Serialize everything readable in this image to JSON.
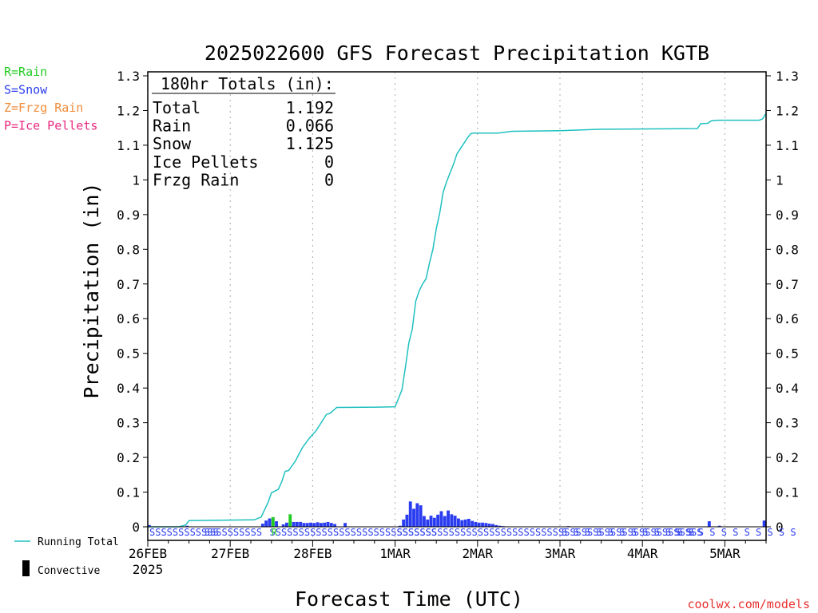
{
  "chart_data": {
    "type": "bar",
    "title": "2025022600 GFS Forecast Precipitation KGTB",
    "ylabel": "Precipitation (in)",
    "xlabel": "Forecast Time (UTC)",
    "ylim": [
      0,
      1.3
    ],
    "xlim_hours": [
      0,
      180
    ],
    "y_ticks": [
      "0",
      "0.1",
      "0.2",
      "0.3",
      "0.4",
      "0.5",
      "0.6",
      "0.7",
      "0.8",
      "0.9",
      "1",
      "1.1",
      "1.2",
      "1.3"
    ],
    "x_ticks": [
      {
        "label": "26FEB",
        "sub": "2025",
        "hour": 0
      },
      {
        "label": "27FEB",
        "sub": "",
        "hour": 24
      },
      {
        "label": "28FEB",
        "sub": "",
        "hour": 48
      },
      {
        "label": "1MAR",
        "sub": "",
        "hour": 72
      },
      {
        "label": "2MAR",
        "sub": "",
        "hour": 96
      },
      {
        "label": "3MAR",
        "sub": "",
        "hour": 120
      },
      {
        "label": "4MAR",
        "sub": "",
        "hour": 144
      },
      {
        "label": "5MAR",
        "sub": "",
        "hour": 168
      }
    ],
    "type_legend": [
      {
        "text": "R=Rain",
        "color": "#22cc22"
      },
      {
        "text": "S=Snow",
        "color": "#2a3cf0"
      },
      {
        "text": "Z=Frzg Rain",
        "color": "#f08c3c"
      },
      {
        "text": "P=Ice Pellets",
        "color": "#e8287e"
      }
    ],
    "totals": {
      "heading": "180hr Totals (in):",
      "rows": [
        {
          "label": "Total",
          "value": "1.192"
        },
        {
          "label": "Rain",
          "value": "0.066"
        },
        {
          "label": "Snow",
          "value": "1.125"
        },
        {
          "label": "Ice Pellets",
          "value": "0"
        },
        {
          "label": "Frzg Rain",
          "value": "0"
        }
      ]
    },
    "series_legend": {
      "running_total": "Running Total",
      "convective": "Convective"
    },
    "colors": {
      "snow": "#2a3cf0",
      "rain": "#22cc22",
      "running_total": "#20c0c0",
      "text": "#000000"
    },
    "snow_bars": [
      [
        0,
        0.005
      ],
      [
        11,
        0.003
      ],
      [
        33,
        0.009
      ],
      [
        34,
        0.018
      ],
      [
        35,
        0.024
      ],
      [
        36,
        0.026
      ],
      [
        37,
        0.016
      ],
      [
        39,
        0.007
      ],
      [
        40,
        0.012
      ],
      [
        42,
        0.014
      ],
      [
        43,
        0.014
      ],
      [
        44,
        0.014
      ],
      [
        45,
        0.011
      ],
      [
        46,
        0.011
      ],
      [
        47,
        0.012
      ],
      [
        48,
        0.011
      ],
      [
        49,
        0.013
      ],
      [
        50,
        0.011
      ],
      [
        51,
        0.012
      ],
      [
        52,
        0.014
      ],
      [
        53,
        0.011
      ],
      [
        54,
        0.008
      ],
      [
        57,
        0.011
      ],
      [
        73,
        0.003
      ],
      [
        74,
        0.021
      ],
      [
        75,
        0.035
      ],
      [
        76,
        0.073
      ],
      [
        77,
        0.052
      ],
      [
        78,
        0.068
      ],
      [
        79,
        0.062
      ],
      [
        80,
        0.031
      ],
      [
        81,
        0.021
      ],
      [
        82,
        0.032
      ],
      [
        83,
        0.026
      ],
      [
        84,
        0.035
      ],
      [
        85,
        0.045
      ],
      [
        86,
        0.031
      ],
      [
        87,
        0.047
      ],
      [
        88,
        0.036
      ],
      [
        89,
        0.032
      ],
      [
        90,
        0.024
      ],
      [
        91,
        0.019
      ],
      [
        92,
        0.021
      ],
      [
        93,
        0.023
      ],
      [
        94,
        0.017
      ],
      [
        95,
        0.014
      ],
      [
        96,
        0.012
      ],
      [
        97,
        0.012
      ],
      [
        98,
        0.011
      ],
      [
        99,
        0.009
      ],
      [
        100,
        0.008
      ],
      [
        101,
        0.005
      ],
      [
        102,
        0.003
      ],
      [
        103,
        0.002
      ],
      [
        122,
        0.002
      ],
      [
        140,
        0.001
      ],
      [
        163,
        0.016
      ],
      [
        166,
        0.003
      ],
      [
        179,
        0.018
      ]
    ],
    "rain_bars": [
      [
        36,
        0.028
      ],
      [
        41,
        0.036
      ]
    ],
    "running_total": [
      [
        0,
        0
      ],
      [
        9,
        0
      ],
      [
        11,
        0.005
      ],
      [
        12,
        0.018
      ],
      [
        31,
        0.02
      ],
      [
        33,
        0.028
      ],
      [
        35,
        0.07
      ],
      [
        36,
        0.098
      ],
      [
        38,
        0.108
      ],
      [
        39,
        0.13
      ],
      [
        40,
        0.16
      ],
      [
        41,
        0.162
      ],
      [
        43,
        0.19
      ],
      [
        45,
        0.228
      ],
      [
        47,
        0.255
      ],
      [
        49,
        0.277
      ],
      [
        51,
        0.308
      ],
      [
        52,
        0.324
      ],
      [
        53,
        0.327
      ],
      [
        55,
        0.344
      ],
      [
        67,
        0.345
      ],
      [
        72,
        0.346
      ],
      [
        73,
        0.37
      ],
      [
        74,
        0.395
      ],
      [
        75,
        0.46
      ],
      [
        76,
        0.53
      ],
      [
        77,
        0.57
      ],
      [
        78,
        0.65
      ],
      [
        79,
        0.68
      ],
      [
        80,
        0.7
      ],
      [
        81,
        0.715
      ],
      [
        82,
        0.76
      ],
      [
        83,
        0.8
      ],
      [
        84,
        0.86
      ],
      [
        85,
        0.905
      ],
      [
        86,
        0.965
      ],
      [
        87,
        0.995
      ],
      [
        88,
        1.02
      ],
      [
        89,
        1.045
      ],
      [
        90,
        1.075
      ],
      [
        91,
        1.09
      ],
      [
        92,
        1.105
      ],
      [
        93,
        1.12
      ],
      [
        94,
        1.133
      ],
      [
        95,
        1.135
      ],
      [
        102,
        1.135
      ],
      [
        106,
        1.14
      ],
      [
        120,
        1.142
      ],
      [
        132,
        1.146
      ],
      [
        147,
        1.147
      ],
      [
        160,
        1.148
      ],
      [
        161,
        1.162
      ],
      [
        163,
        1.163
      ],
      [
        164,
        1.17
      ],
      [
        166,
        1.172
      ],
      [
        178,
        1.172
      ],
      [
        179,
        1.176
      ],
      [
        180,
        1.192
      ]
    ],
    "ptype_labels": [
      "SSSSSSSSSSSS",
      "SSSSSSSSSS",
      "SSSSSSSSSSSSSSSSSSSSSSSSSSSSS",
      "SSSSSSSSSSSSSSSSSSSSSSSSSSSSSSSSSSSSSSSSSSSSSSSSSSSSS",
      "S S S S S S S S S S S S",
      "S S S S S S S S S S S"
    ],
    "watermark": "coolwx.com/models"
  }
}
